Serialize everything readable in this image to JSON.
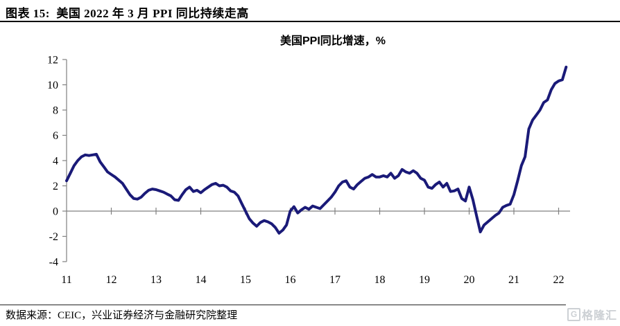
{
  "header": {
    "title": "图表 15:  美国 2022 年 3 月 PPI 同比持续走高"
  },
  "chart_data": {
    "type": "line",
    "title": "美国PPI同比增速，%",
    "series_name": "美国PPI同比增速",
    "x_frequency": "monthly",
    "x_start": "2011-01",
    "x_end": "2022-03",
    "x_tick_labels": [
      "11",
      "12",
      "13",
      "14",
      "15",
      "16",
      "17",
      "18",
      "19",
      "20",
      "21",
      "22"
    ],
    "y_ticks": [
      12,
      10,
      8,
      6,
      4,
      2,
      0,
      -2,
      -4
    ],
    "ylim": [
      -4,
      12
    ],
    "grid": false,
    "legend": "none",
    "line_color": "#1A1A78",
    "axis_color": "#808080",
    "values": [
      2.4,
      3.0,
      3.6,
      4.0,
      4.3,
      4.45,
      4.4,
      4.45,
      4.5,
      3.9,
      3.5,
      3.1,
      2.9,
      2.7,
      2.45,
      2.2,
      1.75,
      1.3,
      1.0,
      0.95,
      1.1,
      1.4,
      1.65,
      1.75,
      1.7,
      1.6,
      1.5,
      1.35,
      1.2,
      0.9,
      0.85,
      1.3,
      1.7,
      1.9,
      1.55,
      1.65,
      1.45,
      1.7,
      1.9,
      2.1,
      2.2,
      2.0,
      2.05,
      1.9,
      1.6,
      1.5,
      1.2,
      0.6,
      0.0,
      -0.6,
      -0.95,
      -1.2,
      -0.9,
      -0.75,
      -0.85,
      -1.0,
      -1.3,
      -1.75,
      -1.5,
      -1.1,
      0.0,
      0.35,
      -0.15,
      0.1,
      0.3,
      0.15,
      0.4,
      0.3,
      0.2,
      0.5,
      0.8,
      1.1,
      1.5,
      2.0,
      2.3,
      2.4,
      1.9,
      1.75,
      2.1,
      2.35,
      2.6,
      2.7,
      2.9,
      2.7,
      2.7,
      2.8,
      2.7,
      3.0,
      2.6,
      2.8,
      3.3,
      3.1,
      3.0,
      3.2,
      3.0,
      2.6,
      2.45,
      1.9,
      1.8,
      2.1,
      2.3,
      1.9,
      2.2,
      1.55,
      1.6,
      1.75,
      1.0,
      0.8,
      1.9,
      0.9,
      -0.4,
      -1.65,
      -1.1,
      -0.85,
      -0.6,
      -0.35,
      -0.15,
      0.3,
      0.45,
      0.55,
      1.3,
      2.4,
      3.6,
      4.3,
      6.5,
      7.2,
      7.6,
      8.0,
      8.6,
      8.8,
      9.6,
      10.1,
      10.3,
      10.4,
      11.4
    ]
  },
  "footer": {
    "source": "数据来源：CEIC，兴业证券经济与金融研究院整理",
    "logo_icon": "G",
    "logo_text": "格隆汇"
  }
}
